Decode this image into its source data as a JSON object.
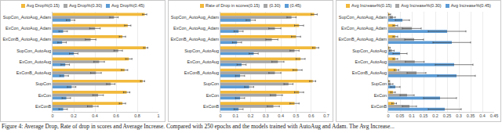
{
  "chart_data": [
    {
      "type": "bar",
      "orientation": "horizontal",
      "grid": true,
      "legend": "top",
      "categories": [
        "SupCon_AutoAug_Adam",
        "ExCon_AutoAug_Adam",
        "ExConB_AutoAug_Adam",
        "SupCon_AutoAug",
        "ExCon_AutoAug",
        "ExConB_AutoAug",
        "SupCon",
        "ExCon",
        "ExConB"
      ],
      "xlim": [
        0,
        1
      ],
      "xticks": [
        0,
        0.2,
        0.4,
        0.6,
        0.8,
        1
      ],
      "series": [
        {
          "name": "Avg Drop%(0.15)",
          "color": "#f2b93b",
          "values": [
            0.87,
            0.71,
            0.66,
            0.88,
            0.72,
            0.68,
            0.85,
            0.7,
            0.66
          ],
          "errors": [
            0.02,
            0.03,
            0.03,
            0.02,
            0.03,
            0.03,
            0.02,
            0.03,
            0.03
          ]
        },
        {
          "name": "Avg Drop%(0.30)",
          "color": "#a5a5a5",
          "values": [
            0.58,
            0.4,
            0.36,
            0.62,
            0.44,
            0.41,
            0.55,
            0.43,
            0.38
          ],
          "errors": [
            0.04,
            0.05,
            0.05,
            0.04,
            0.05,
            0.05,
            0.04,
            0.05,
            0.05
          ]
        },
        {
          "name": "Avg Drop%(0.45)",
          "color": "#5b9bd5",
          "values": [
            0.17,
            0.1,
            0.09,
            0.2,
            0.12,
            0.11,
            0.18,
            0.13,
            0.1
          ],
          "errors": [
            0.04,
            0.04,
            0.04,
            0.04,
            0.04,
            0.04,
            0.04,
            0.04,
            0.04
          ]
        }
      ]
    },
    {
      "type": "bar",
      "orientation": "horizontal",
      "grid": true,
      "legend": "top",
      "categories": [
        "SupCon_AutoAug_Adam",
        "ExCon_AutoAug_Adam",
        "ExConB_AutoAug_Adam",
        "SupCon_AutoAug",
        "ExCon_AutoAug",
        "ExConB_AutoAug",
        "SupCon",
        "ExCon",
        "ExConB"
      ],
      "xlim": [
        0,
        0.7
      ],
      "xticks": [
        0,
        0.1,
        0.2,
        0.3,
        0.4,
        0.5,
        0.6,
        0.7
      ],
      "series": [
        {
          "name": "Rate of Drop in scores(0.15)",
          "color": "#f2b93b",
          "values": [
            0.62,
            0.52,
            0.5,
            0.63,
            0.53,
            0.51,
            0.61,
            0.52,
            0.49
          ],
          "errors": [
            0.02,
            0.03,
            0.03,
            0.02,
            0.03,
            0.03,
            0.02,
            0.03,
            0.03
          ]
        },
        {
          "name": "(0.30)",
          "color": "#a5a5a5",
          "values": [
            0.47,
            0.36,
            0.34,
            0.49,
            0.38,
            0.36,
            0.45,
            0.37,
            0.35
          ],
          "errors": [
            0.03,
            0.04,
            0.04,
            0.03,
            0.04,
            0.04,
            0.03,
            0.04,
            0.04
          ]
        },
        {
          "name": "(0.45)",
          "color": "#5b9bd5",
          "values": [
            0.2,
            0.12,
            0.11,
            0.22,
            0.14,
            0.13,
            0.19,
            0.13,
            0.12
          ],
          "errors": [
            0.03,
            0.03,
            0.03,
            0.03,
            0.03,
            0.03,
            0.03,
            0.03,
            0.03
          ]
        }
      ]
    },
    {
      "type": "bar",
      "orientation": "horizontal",
      "grid": true,
      "legend": "top",
      "categories": [
        "SupCon_AutoAug_Adam",
        "ExCon_AutoAug_Adam",
        "ExConB_AutoAug_Adam",
        "SupCon_AutoAug",
        "ExCon_AutoAug",
        "ExConB_AutoAug",
        "SupCon",
        "ExCon",
        "ExConB"
      ],
      "xlim": [
        0,
        0.45
      ],
      "xticks": [
        0,
        0.05,
        0.1,
        0.15,
        0.2,
        0.25,
        0.3,
        0.35,
        0.4,
        0.45
      ],
      "series": [
        {
          "name": "Avg Increase%(0.15)",
          "color": "#f2b93b",
          "values": [
            0.005,
            0.03,
            0.03,
            0.004,
            0.03,
            0.035,
            0.003,
            0.02,
            0.025
          ],
          "errors": [
            0.005,
            0.01,
            0.01,
            0.004,
            0.01,
            0.01,
            0.003,
            0.01,
            0.01
          ]
        },
        {
          "name": "Avg Increase%(0.30)",
          "color": "#a5a5a5",
          "values": [
            0.02,
            0.1,
            0.11,
            0.015,
            0.1125,
            0.12,
            0.01,
            0.08,
            0.09
          ],
          "errors": [
            0.01,
            0.04,
            0.04,
            0.01,
            0.04,
            0.04,
            0.01,
            0.03,
            0.03
          ]
        },
        {
          "name": "Avg Increase%(0.45)",
          "color": "#5b9bd5",
          "values": [
            0.06,
            0.25,
            0.27,
            0.05,
            0.28,
            0.29,
            0.03,
            0.22,
            0.24
          ],
          "errors": [
            0.03,
            0.08,
            0.08,
            0.03,
            0.08,
            0.08,
            0.02,
            0.07,
            0.07
          ]
        }
      ]
    }
  ],
  "caption": "Figure 4: Average Drop, Rate of drop in scores and Average Increase. Compared with 250 epochs and the models trained with AutoAug and Adam. The Avg Increase..."
}
